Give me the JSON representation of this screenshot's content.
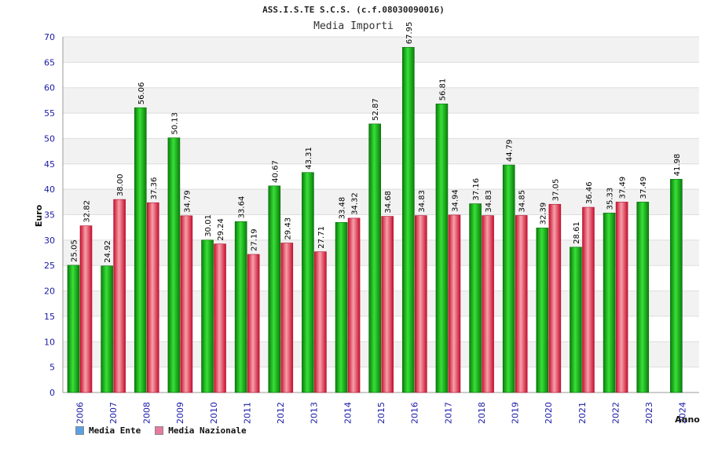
{
  "chart_data": {
    "type": "bar",
    "title": "ASS.I.S.TE S.C.S. (c.f.08030090016)",
    "subtitle": "Media Importi",
    "ylabel": "Euro",
    "xlabel": "Anno",
    "ylim": [
      0,
      70
    ],
    "yticks": [
      0,
      5,
      10,
      15,
      20,
      25,
      30,
      35,
      40,
      45,
      50,
      55,
      60,
      65,
      70
    ],
    "grid": true,
    "legend_position": "bottom-left",
    "categories": [
      "2006",
      "2007",
      "2008",
      "2009",
      "2010",
      "2011",
      "2012",
      "2013",
      "2014",
      "2015",
      "2016",
      "2017",
      "2018",
      "2019",
      "2020",
      "2021",
      "2022",
      "2023",
      "2024"
    ],
    "series": [
      {
        "name": "Media Ente",
        "color": "#1aa31a",
        "swatch_color": "#5aa0e6",
        "values": [
          25.05,
          24.92,
          56.06,
          50.13,
          30.01,
          33.64,
          40.67,
          43.31,
          33.48,
          52.87,
          67.95,
          56.81,
          37.16,
          44.79,
          32.39,
          28.61,
          35.33,
          37.49,
          41.98
        ],
        "labels": [
          "25.05",
          "24.92",
          "56.06",
          "50.13",
          "30.01",
          "33.64",
          "40.67",
          "43.31",
          "33.48",
          "52.87",
          "67.95",
          "56.81",
          "37.16",
          "44.79",
          "32.39",
          "28.61",
          "35.33",
          "37.49",
          "41.98"
        ]
      },
      {
        "name": "Media Nazionale",
        "color": "#e8505f",
        "swatch_color": "#e87aa0",
        "values": [
          32.82,
          38.0,
          37.36,
          34.79,
          29.24,
          27.19,
          29.43,
          27.71,
          34.32,
          34.68,
          34.83,
          34.94,
          34.83,
          34.85,
          37.05,
          36.46,
          37.49,
          null,
          null
        ],
        "labels": [
          "32.82",
          "38.00",
          "37.36",
          "34.79",
          "29.24",
          "27.19",
          "29.43",
          "27.71",
          "34.32",
          "34.68",
          "34.83",
          "34.94",
          "34.83",
          "34.85",
          "37.05",
          "36.46",
          "37.49",
          "",
          ""
        ]
      }
    ]
  }
}
